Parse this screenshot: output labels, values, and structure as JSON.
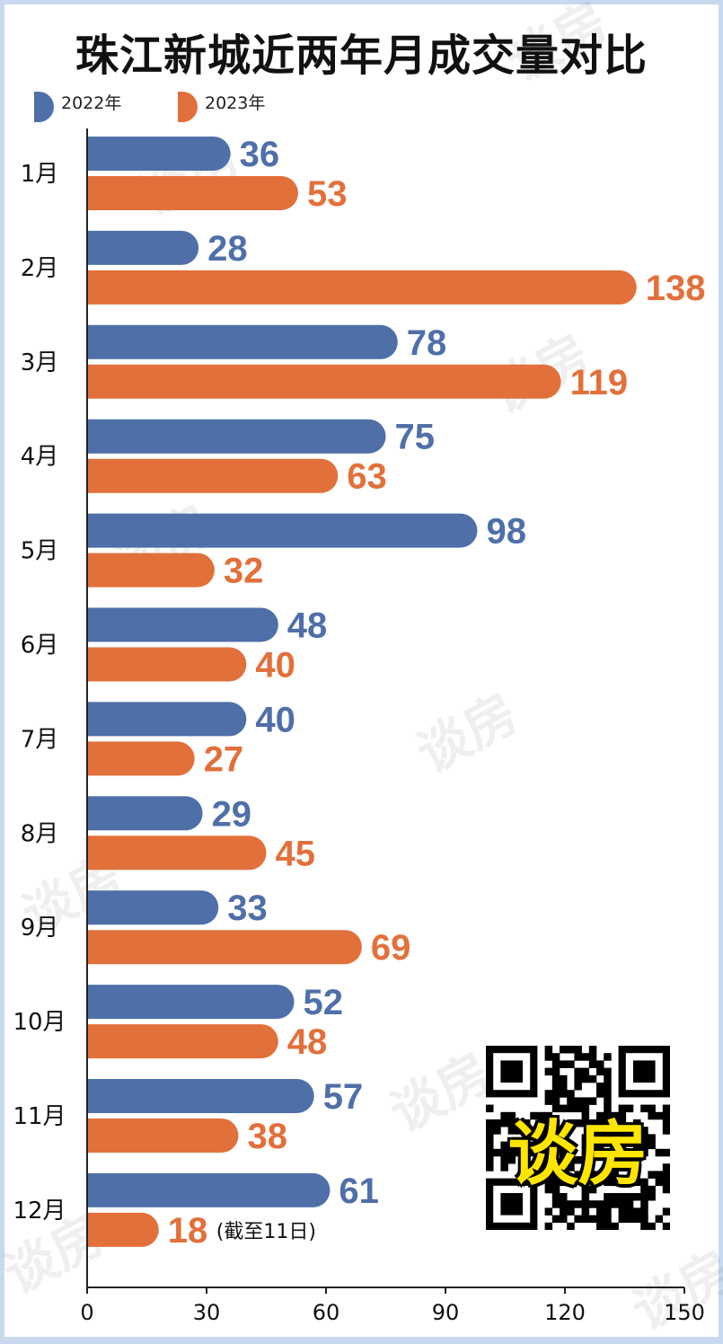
{
  "title": "珠江新城近两年月成交量对比",
  "legend": [
    {
      "label": "2022年",
      "color": "#4f6fa8"
    },
    {
      "label": "2023年",
      "color": "#e2703a"
    }
  ],
  "watermark": "谈房",
  "qr_brand": "谈房",
  "note": "(截至11日)",
  "chart_data": {
    "type": "bar",
    "orientation": "horizontal",
    "title": "珠江新城近两年月成交量对比",
    "categories": [
      "1月",
      "2月",
      "3月",
      "4月",
      "5月",
      "6月",
      "7月",
      "8月",
      "9月",
      "10月",
      "11月",
      "12月"
    ],
    "series": [
      {
        "name": "2022年",
        "color": "#4f6fa8",
        "values": [
          36,
          28,
          78,
          75,
          98,
          48,
          40,
          29,
          33,
          52,
          57,
          61
        ]
      },
      {
        "name": "2023年",
        "color": "#e2703a",
        "values": [
          53,
          138,
          119,
          63,
          32,
          40,
          27,
          45,
          69,
          48,
          38,
          18
        ]
      }
    ],
    "xlim": [
      0,
      150
    ],
    "xticks": [
      0,
      30,
      60,
      90,
      120,
      150
    ],
    "annotations": [
      {
        "category": "12月",
        "series": "2023年",
        "text": "(截至11日)"
      }
    ],
    "grid": false,
    "legend_position": "top-left"
  }
}
